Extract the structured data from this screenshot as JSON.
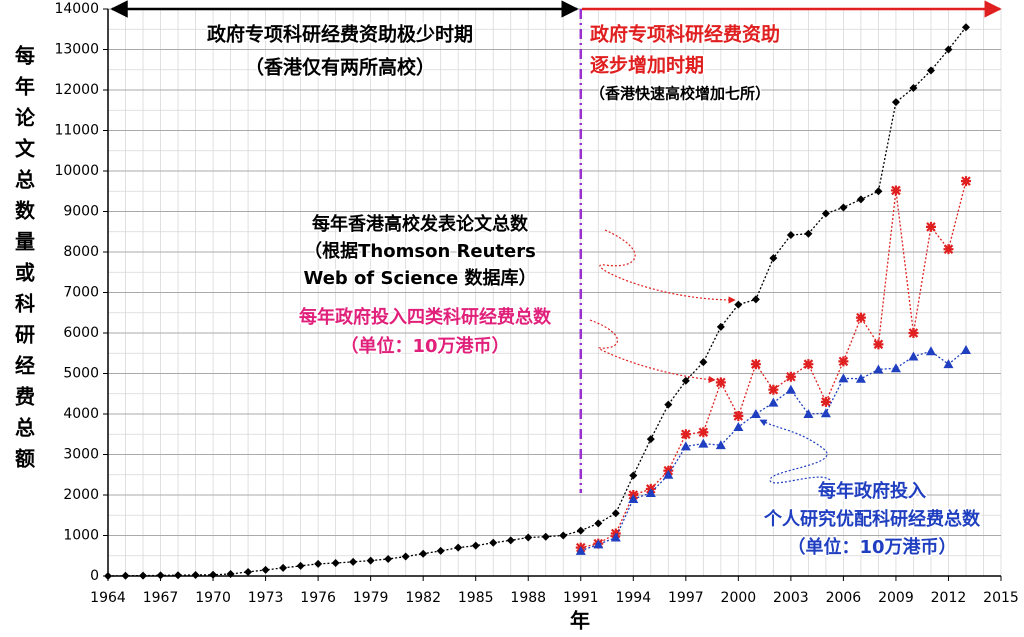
{
  "chart_data": {
    "type": "line",
    "x": [
      1964,
      1965,
      1966,
      1967,
      1968,
      1969,
      1970,
      1971,
      1972,
      1973,
      1974,
      1975,
      1976,
      1977,
      1978,
      1979,
      1980,
      1981,
      1982,
      1983,
      1984,
      1985,
      1986,
      1987,
      1988,
      1989,
      1990,
      1991,
      1992,
      1993,
      1994,
      1995,
      1996,
      1997,
      1998,
      1999,
      2000,
      2001,
      2002,
      2003,
      2004,
      2005,
      2006,
      2007,
      2008,
      2009,
      2010,
      2011,
      2012,
      2013
    ],
    "series": [
      {
        "color": "#000000",
        "marker": "diamond",
        "values": [
          0,
          5,
          10,
          15,
          20,
          25,
          30,
          50,
          100,
          150,
          200,
          250,
          300,
          320,
          350,
          380,
          420,
          480,
          550,
          620,
          700,
          750,
          820,
          880,
          950,
          970,
          1000,
          1120,
          1300,
          1550,
          2480,
          3380,
          4230,
          4820,
          5280,
          6150,
          6700,
          6830,
          7850,
          8420,
          8450,
          8950,
          9100,
          9300,
          9500,
          11700,
          12050,
          12480,
          13000,
          13550
        ]
      },
      {
        "color": "#e02020",
        "marker": "x",
        "values": [
          null,
          null,
          null,
          null,
          null,
          null,
          null,
          null,
          null,
          null,
          null,
          null,
          null,
          null,
          null,
          null,
          null,
          null,
          null,
          null,
          null,
          null,
          null,
          null,
          null,
          null,
          null,
          700,
          800,
          1050,
          2000,
          2150,
          2600,
          3500,
          3550,
          4780,
          3950,
          5230,
          4600,
          4920,
          5230,
          4300,
          5300,
          6380,
          5720,
          9520,
          6000,
          8620,
          8070,
          9750
        ]
      },
      {
        "color": "#1f3fc0",
        "marker": "triangle",
        "values": [
          null,
          null,
          null,
          null,
          null,
          null,
          null,
          null,
          null,
          null,
          null,
          null,
          null,
          null,
          null,
          null,
          null,
          null,
          null,
          null,
          null,
          null,
          null,
          null,
          null,
          null,
          null,
          620,
          780,
          950,
          1900,
          2050,
          2500,
          3200,
          3270,
          3230,
          3680,
          4000,
          4280,
          4600,
          4000,
          4020,
          4880,
          4870,
          5100,
          5130,
          5420,
          5550,
          5230,
          5580
        ]
      }
    ],
    "xlim": [
      1964,
      2015
    ],
    "xticks": [
      1964,
      1967,
      1970,
      1973,
      1976,
      1979,
      1982,
      1985,
      1988,
      1991,
      1994,
      1997,
      2000,
      2003,
      2006,
      2009,
      2012,
      2015
    ],
    "ylim": [
      0,
      14000
    ],
    "yticks": [
      0,
      1000,
      2000,
      3000,
      4000,
      5000,
      6000,
      7000,
      8000,
      9000,
      10000,
      11000,
      12000,
      13000,
      14000
    ],
    "grid": true,
    "period_divider": 1991,
    "x_label": "年",
    "y_label": "每年论文总数量或科研经费总额",
    "annotations": [
      {
        "color": "#000000",
        "lines": [
          "政府专项科研经费资助极少时期",
          "（香港仅有两所高校）"
        ]
      },
      {
        "color": "#e02020",
        "lines": [
          "政府专项科研经费资助",
          "逐步增加时期"
        ]
      },
      {
        "color": "#000000",
        "lines": [
          "（香港快速高校增加七所）"
        ]
      },
      {
        "color": "#000000",
        "lines": [
          "每年香港高校发表论文总数",
          "（根据Thomson Reuters",
          "Web of Science 数据库）"
        ]
      },
      {
        "color": "#e0207a",
        "lines": [
          "每年政府投入四类科研经费总数",
          "（单位：10万港币）"
        ]
      },
      {
        "color": "#1f3fc0",
        "lines": [
          "每年政府投入",
          "个人研究优配科研经费总数",
          "（单位：10万港币）"
        ]
      }
    ]
  }
}
